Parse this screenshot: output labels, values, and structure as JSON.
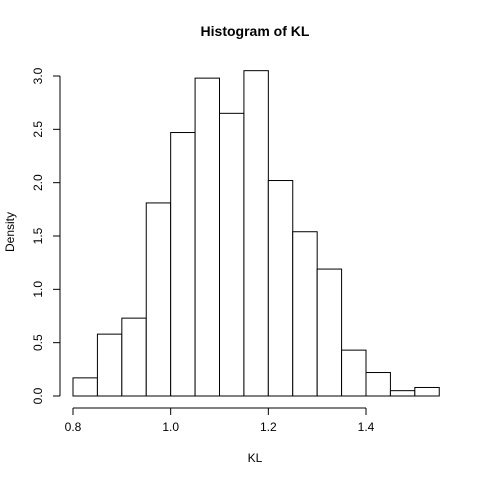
{
  "chart_data": {
    "type": "bar",
    "title": "Histogram of KL",
    "xlabel": "KL",
    "ylabel": "Density",
    "xlim": [
      0.8,
      1.55
    ],
    "ylim": [
      0,
      3.0
    ],
    "grid": false,
    "bin_width": 0.05,
    "bins": [
      {
        "start": 0.8,
        "end": 0.85,
        "density": 0.17
      },
      {
        "start": 0.85,
        "end": 0.9,
        "density": 0.58
      },
      {
        "start": 0.9,
        "end": 0.95,
        "density": 0.73
      },
      {
        "start": 0.95,
        "end": 1.0,
        "density": 1.81
      },
      {
        "start": 1.0,
        "end": 1.05,
        "density": 2.47
      },
      {
        "start": 1.05,
        "end": 1.1,
        "density": 2.98
      },
      {
        "start": 1.1,
        "end": 1.15,
        "density": 2.65
      },
      {
        "start": 1.15,
        "end": 1.2,
        "density": 3.05
      },
      {
        "start": 1.2,
        "end": 1.25,
        "density": 2.02
      },
      {
        "start": 1.25,
        "end": 1.3,
        "density": 1.54
      },
      {
        "start": 1.3,
        "end": 1.35,
        "density": 1.19
      },
      {
        "start": 1.35,
        "end": 1.4,
        "density": 0.43
      },
      {
        "start": 1.4,
        "end": 1.45,
        "density": 0.22
      },
      {
        "start": 1.45,
        "end": 1.5,
        "density": 0.05
      },
      {
        "start": 1.5,
        "end": 1.55,
        "density": 0.08
      }
    ],
    "x_ticks": [
      0.8,
      1.0,
      1.2,
      1.4
    ],
    "x_tick_labels": [
      "0.8",
      "1.0",
      "1.2",
      "1.4"
    ],
    "y_ticks": [
      0.0,
      0.5,
      1.0,
      1.5,
      2.0,
      2.5,
      3.0
    ],
    "y_tick_labels": [
      "0.0",
      "0.5",
      "1.0",
      "1.5",
      "2.0",
      "2.5",
      "3.0"
    ]
  }
}
